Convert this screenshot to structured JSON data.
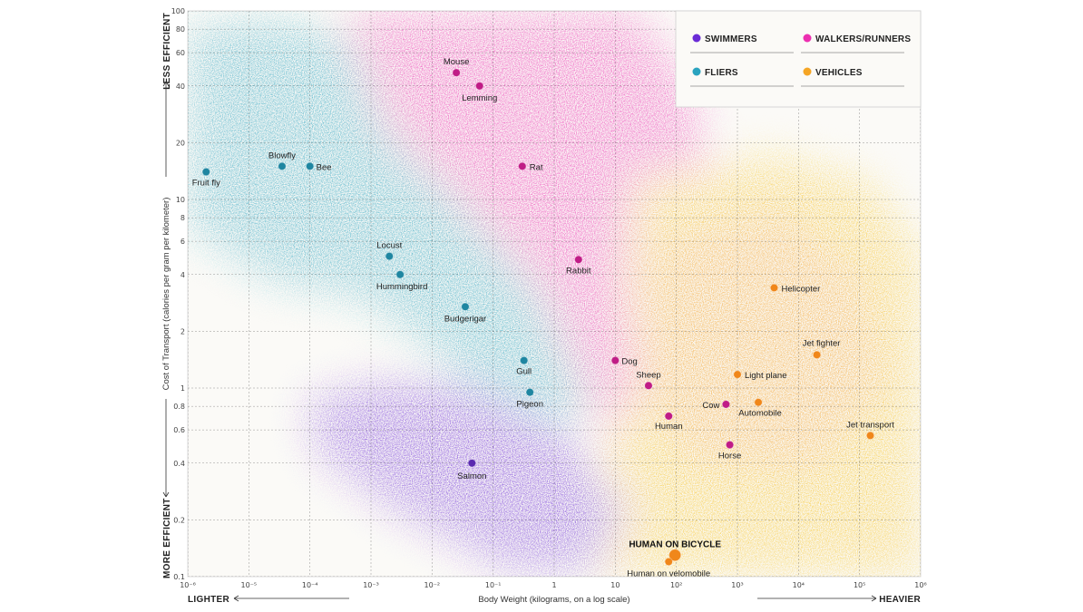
{
  "chart_data": {
    "type": "scatter",
    "title": "",
    "xlabel": "Body Weight (kilograms, on a log scale)",
    "ylabel": "Cost of Transport (calories per gram per kilometer)",
    "x_scale": "log",
    "y_scale": "log",
    "xlim": [
      1e-06,
      1000000.0
    ],
    "ylim": [
      0.1,
      100
    ],
    "x_ticks": [
      {
        "value": 1e-06,
        "label": "10⁻⁶"
      },
      {
        "value": 1e-05,
        "label": "10⁻⁵"
      },
      {
        "value": 0.0001,
        "label": "10⁻⁴"
      },
      {
        "value": 0.001,
        "label": "10⁻³"
      },
      {
        "value": 0.01,
        "label": "10⁻²"
      },
      {
        "value": 0.1,
        "label": "10⁻¹"
      },
      {
        "value": 1,
        "label": "1"
      },
      {
        "value": 10,
        "label": "10"
      },
      {
        "value": 100,
        "label": "10²"
      },
      {
        "value": 1000,
        "label": "10³"
      },
      {
        "value": 10000,
        "label": "10⁴"
      },
      {
        "value": 100000,
        "label": "10⁵"
      },
      {
        "value": 1000000,
        "label": "10⁶"
      }
    ],
    "y_ticks": [
      {
        "value": 0.1,
        "label": "0.1"
      },
      {
        "value": 0.2,
        "label": "0.2"
      },
      {
        "value": 0.4,
        "label": "0.4"
      },
      {
        "value": 0.6,
        "label": "0.6"
      },
      {
        "value": 0.8,
        "label": "0.8"
      },
      {
        "value": 1,
        "label": "1"
      },
      {
        "value": 2,
        "label": "2"
      },
      {
        "value": 4,
        "label": "4"
      },
      {
        "value": 6,
        "label": "6"
      },
      {
        "value": 8,
        "label": "8"
      },
      {
        "value": 10,
        "label": "10"
      },
      {
        "value": 20,
        "label": "20"
      },
      {
        "value": 40,
        "label": "40"
      },
      {
        "value": 60,
        "label": "60"
      },
      {
        "value": 80,
        "label": "80"
      },
      {
        "value": 100,
        "label": "100"
      }
    ],
    "colors": {
      "swimmers": "#6a2bd6",
      "walkers": "#ec2fb0",
      "fliers": "#2aa3bf",
      "vehicles": "#f5a524"
    },
    "legend": [
      {
        "key": "swimmers",
        "label": "SWIMMERS"
      },
      {
        "key": "walkers",
        "label": "WALKERS/RUNNERS"
      },
      {
        "key": "fliers",
        "label": "FLIERS"
      },
      {
        "key": "vehicles",
        "label": "VEHICLES"
      }
    ],
    "series": [
      {
        "name": "Fliers",
        "key": "fliers",
        "points": [
          {
            "label": "Fruit fly",
            "x": 2e-06,
            "y": 14
          },
          {
            "label": "Blowfly",
            "x": 3.5e-05,
            "y": 15
          },
          {
            "label": "Bee",
            "x": 0.0001,
            "y": 15
          },
          {
            "label": "Locust",
            "x": 0.002,
            "y": 5
          },
          {
            "label": "Hummingbird",
            "x": 0.003,
            "y": 4
          },
          {
            "label": "Budgerigar",
            "x": 0.035,
            "y": 2.7
          },
          {
            "label": "Gull",
            "x": 0.32,
            "y": 1.4
          },
          {
            "label": "Pigeon",
            "x": 0.4,
            "y": 0.95
          }
        ]
      },
      {
        "name": "Walkers/Runners",
        "key": "walkers",
        "points": [
          {
            "label": "Mouse",
            "x": 0.025,
            "y": 47
          },
          {
            "label": "Lemming",
            "x": 0.06,
            "y": 40
          },
          {
            "label": "Rat",
            "x": 0.3,
            "y": 15
          },
          {
            "label": "Rabbit",
            "x": 2.5,
            "y": 4.8
          },
          {
            "label": "Dog",
            "x": 10,
            "y": 1.4
          },
          {
            "label": "Sheep",
            "x": 35,
            "y": 1.03
          },
          {
            "label": "Human",
            "x": 75,
            "y": 0.71
          },
          {
            "label": "Cow",
            "x": 650,
            "y": 0.82
          },
          {
            "label": "Horse",
            "x": 750,
            "y": 0.5
          }
        ]
      },
      {
        "name": "Swimmers",
        "key": "swimmers",
        "points": [
          {
            "label": "Salmon",
            "x": 0.045,
            "y": 0.4
          }
        ]
      },
      {
        "name": "Vehicles",
        "key": "vehicles",
        "points": [
          {
            "label": "Helicopter",
            "x": 4000,
            "y": 3.4
          },
          {
            "label": "Jet fighter",
            "x": 20000,
            "y": 1.5
          },
          {
            "label": "Light plane",
            "x": 1000,
            "y": 1.18
          },
          {
            "label": "Automobile",
            "x": 2200,
            "y": 0.84
          },
          {
            "label": "Jet transport",
            "x": 150000,
            "y": 0.56
          },
          {
            "label": "HUMAN ON BICYCLE",
            "x": 95,
            "y": 0.13,
            "highlight": true
          },
          {
            "label": "Human on velomobile",
            "x": 75,
            "y": 0.12
          }
        ]
      }
    ],
    "annotations": {
      "less_efficient": "LESS EFFICIENT",
      "more_efficient": "MORE EFFICIENT",
      "lighter": "LIGHTER",
      "heavier": "HEAVIER"
    }
  }
}
